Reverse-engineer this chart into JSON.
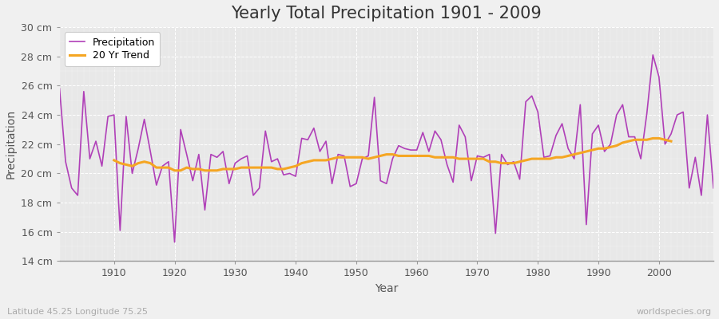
{
  "title": "Yearly Total Precipitation 1901 - 2009",
  "xlabel": "Year",
  "ylabel": "Precipitation",
  "subtitle": "Latitude 45.25 Longitude 75.25",
  "watermark": "worldspecies.org",
  "years": [
    1901,
    1902,
    1903,
    1904,
    1905,
    1906,
    1907,
    1908,
    1909,
    1910,
    1911,
    1912,
    1913,
    1914,
    1915,
    1916,
    1917,
    1918,
    1919,
    1920,
    1921,
    1922,
    1923,
    1924,
    1925,
    1926,
    1927,
    1928,
    1929,
    1930,
    1931,
    1932,
    1933,
    1934,
    1935,
    1936,
    1937,
    1938,
    1939,
    1940,
    1941,
    1942,
    1943,
    1944,
    1945,
    1946,
    1947,
    1948,
    1949,
    1950,
    1951,
    1952,
    1953,
    1954,
    1955,
    1956,
    1957,
    1958,
    1959,
    1960,
    1961,
    1962,
    1963,
    1964,
    1965,
    1966,
    1967,
    1968,
    1969,
    1970,
    1971,
    1972,
    1973,
    1974,
    1975,
    1976,
    1977,
    1978,
    1979,
    1980,
    1981,
    1982,
    1983,
    1984,
    1985,
    1986,
    1987,
    1988,
    1989,
    1990,
    1991,
    1992,
    1993,
    1994,
    1995,
    1996,
    1997,
    1998,
    1999,
    2000,
    2001,
    2002,
    2003,
    2004,
    2005,
    2006,
    2007,
    2008,
    2009
  ],
  "precipitation": [
    25.8,
    20.8,
    19.0,
    18.5,
    25.6,
    21.0,
    22.2,
    20.5,
    23.9,
    24.0,
    16.1,
    23.9,
    20.0,
    21.7,
    23.7,
    21.5,
    19.2,
    20.5,
    20.8,
    15.3,
    23.0,
    21.3,
    19.5,
    21.3,
    17.5,
    21.3,
    21.1,
    21.5,
    19.3,
    20.7,
    21.0,
    21.2,
    18.5,
    19.0,
    22.9,
    20.8,
    21.0,
    19.9,
    20.0,
    19.8,
    22.4,
    22.3,
    23.1,
    21.5,
    22.2,
    19.3,
    21.3,
    21.2,
    19.1,
    19.3,
    21.0,
    21.2,
    25.2,
    19.5,
    19.3,
    21.0,
    21.9,
    21.7,
    21.6,
    21.6,
    22.8,
    21.5,
    22.9,
    22.3,
    20.6,
    19.4,
    23.3,
    22.5,
    19.5,
    21.2,
    21.1,
    21.3,
    15.9,
    21.3,
    20.6,
    20.8,
    19.6,
    24.9,
    25.3,
    24.2,
    21.1,
    21.2,
    22.6,
    23.4,
    21.7,
    21.0,
    24.7,
    16.5,
    22.7,
    23.3,
    21.5,
    22.0,
    24.0,
    24.7,
    22.5,
    22.5,
    21.0,
    24.1,
    28.1,
    26.6,
    22.0,
    22.7,
    24.0,
    24.2,
    19.0,
    21.1,
    18.5,
    24.0,
    19.0
  ],
  "trend": [
    null,
    null,
    null,
    null,
    null,
    null,
    null,
    null,
    null,
    20.9,
    20.7,
    20.6,
    20.5,
    20.7,
    20.8,
    20.7,
    20.4,
    20.4,
    20.4,
    20.2,
    20.2,
    20.4,
    20.3,
    20.3,
    20.2,
    20.2,
    20.2,
    20.3,
    20.3,
    20.3,
    20.4,
    20.4,
    20.4,
    20.4,
    20.4,
    20.4,
    20.3,
    20.3,
    20.4,
    20.5,
    20.7,
    20.8,
    20.9,
    20.9,
    20.9,
    21.0,
    21.1,
    21.1,
    21.1,
    21.1,
    21.1,
    21.0,
    21.1,
    21.2,
    21.3,
    21.3,
    21.2,
    21.2,
    21.2,
    21.2,
    21.2,
    21.2,
    21.1,
    21.1,
    21.1,
    21.1,
    21.0,
    21.0,
    21.0,
    21.0,
    21.0,
    20.8,
    20.8,
    20.7,
    20.7,
    20.7,
    20.8,
    20.9,
    21.0,
    21.0,
    21.0,
    21.0,
    21.1,
    21.1,
    21.2,
    21.3,
    21.4,
    21.5,
    21.6,
    21.7,
    21.7,
    21.8,
    21.9,
    22.1,
    22.2,
    22.3,
    22.3,
    22.3,
    22.4,
    22.4,
    22.3,
    22.2,
    null,
    null,
    null,
    null,
    null,
    null,
    null,
    null,
    null
  ],
  "precip_color": "#b040b8",
  "trend_color": "#f5a623",
  "fig_bg_color": "#f0f0f0",
  "plot_bg_color": "#e8e8e8",
  "ylim": [
    14,
    30
  ],
  "yticks": [
    14,
    16,
    18,
    20,
    22,
    24,
    26,
    28,
    30
  ],
  "xticks": [
    1910,
    1920,
    1930,
    1940,
    1950,
    1960,
    1970,
    1980,
    1990,
    2000
  ],
  "title_fontsize": 15,
  "label_fontsize": 10,
  "tick_fontsize": 9,
  "subtitle_color": "#aaaaaa",
  "watermark_color": "#aaaaaa"
}
